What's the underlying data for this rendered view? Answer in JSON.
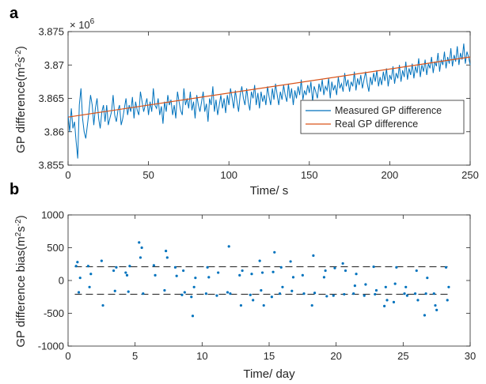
{
  "chart_data": [
    {
      "panel_label": "a",
      "type": "line",
      "xlabel": "Time/ s",
      "ylabel_main": "GP difference(m",
      "ylabel_sup1": "2",
      "ylabel_mid": "s",
      "ylabel_sup2": "-2",
      "ylabel_end": ")",
      "exponent_base": "× 10",
      "exponent_power": "6",
      "xlim": [
        0,
        250
      ],
      "ylim": [
        3.855,
        3.875
      ],
      "xticks": [
        0,
        50,
        100,
        150,
        200,
        250
      ],
      "xtick_labels": [
        "0",
        "50",
        "100",
        "150",
        "200",
        "250"
      ],
      "yticks": [
        3.855,
        3.86,
        3.865,
        3.87,
        3.875
      ],
      "ytick_labels": [
        "3.855",
        "3.86",
        "3.865",
        "3.87",
        "3.875"
      ],
      "legend_position": "lower-right",
      "series": [
        {
          "name": "Measured GP difference",
          "color": "#0072BD",
          "x": [
            0,
            1,
            2,
            3,
            4,
            5,
            6,
            7,
            8,
            9,
            10,
            11,
            12,
            13,
            14,
            15,
            16,
            17,
            18,
            19,
            20,
            21,
            22,
            23,
            24,
            25,
            26,
            27,
            28,
            29,
            30,
            31,
            32,
            33,
            34,
            35,
            36,
            37,
            38,
            39,
            40,
            41,
            42,
            43,
            44,
            45,
            46,
            47,
            48,
            49,
            50,
            51,
            52,
            53,
            54,
            55,
            56,
            57,
            58,
            59,
            60,
            61,
            62,
            63,
            64,
            65,
            66,
            67,
            68,
            69,
            70,
            71,
            72,
            73,
            74,
            75,
            76,
            77,
            78,
            79,
            80,
            81,
            82,
            83,
            84,
            85,
            86,
            87,
            88,
            89,
            90,
            91,
            92,
            93,
            94,
            95,
            96,
            97,
            98,
            99,
            100,
            101,
            102,
            103,
            104,
            105,
            106,
            107,
            108,
            109,
            110,
            111,
            112,
            113,
            114,
            115,
            116,
            117,
            118,
            119,
            120,
            121,
            122,
            123,
            124,
            125,
            126,
            127,
            128,
            129,
            130,
            131,
            132,
            133,
            134,
            135,
            136,
            137,
            138,
            139,
            140,
            141,
            142,
            143,
            144,
            145,
            146,
            147,
            148,
            149,
            150,
            151,
            152,
            153,
            154,
            155,
            156,
            157,
            158,
            159,
            160,
            161,
            162,
            163,
            164,
            165,
            166,
            167,
            168,
            169,
            170,
            171,
            172,
            173,
            174,
            175,
            176,
            177,
            178,
            179,
            180,
            181,
            182,
            183,
            184,
            185,
            186,
            187,
            188,
            189,
            190,
            191,
            192,
            193,
            194,
            195,
            196,
            197,
            198,
            199,
            200,
            201,
            202,
            203,
            204,
            205,
            206,
            207,
            208,
            209,
            210,
            211,
            212,
            213,
            214,
            215,
            216,
            217,
            218,
            219,
            220,
            221,
            222,
            223,
            224,
            225,
            226,
            227,
            228,
            229,
            230,
            231,
            232,
            233,
            234,
            235,
            236,
            237,
            238,
            239,
            240,
            241,
            242,
            243,
            244,
            245,
            246,
            247,
            248,
            249,
            250
          ],
          "y": [
            3.8625,
            3.86,
            3.8635,
            3.8605,
            3.8615,
            3.8585,
            3.856,
            3.864,
            3.8665,
            3.862,
            3.86,
            3.859,
            3.861,
            3.863,
            3.8655,
            3.864,
            3.861,
            3.8635,
            3.865,
            3.862,
            3.8605,
            3.863,
            3.864,
            3.8615,
            3.864,
            3.861,
            3.862,
            3.863,
            3.8655,
            3.8625,
            3.8615,
            3.8632,
            3.864,
            3.861,
            3.862,
            3.8635,
            3.865,
            3.8625,
            3.864,
            3.863,
            3.8652,
            3.862,
            3.8645,
            3.8632,
            3.8625,
            3.866,
            3.8645,
            3.863,
            3.864,
            3.865,
            3.8625,
            3.8645,
            3.863,
            3.8665,
            3.864,
            3.8635,
            3.865,
            3.8625,
            3.8638,
            3.8612,
            3.8645,
            3.863,
            3.8655,
            3.864,
            3.8648,
            3.8625,
            3.864,
            3.862,
            3.866,
            3.8645,
            3.8632,
            3.8625,
            3.8665,
            3.864,
            3.865,
            3.8635,
            3.866,
            3.8632,
            3.8645,
            3.862,
            3.8655,
            3.864,
            3.863,
            3.8645,
            3.866,
            3.863,
            3.8642,
            3.8615,
            3.865,
            3.864,
            3.8668,
            3.863,
            3.8648,
            3.8625,
            3.864,
            3.8655,
            3.8635,
            3.865,
            3.8628,
            3.8655,
            3.864,
            3.8665,
            3.865,
            3.8635,
            3.8662,
            3.8645,
            3.863,
            3.8655,
            3.8668,
            3.865,
            3.864,
            3.8665,
            3.8645,
            3.8632,
            3.866,
            3.865,
            3.867,
            3.864,
            3.8658,
            3.8635,
            3.866,
            3.8645,
            3.8655,
            3.864,
            3.8668,
            3.8652,
            3.864,
            3.8665,
            3.8648,
            3.8672,
            3.8655,
            3.864,
            3.866,
            3.8648,
            3.867,
            3.8655,
            3.8645,
            3.8672,
            3.865,
            3.8665,
            3.864,
            3.8662,
            3.865,
            3.8668,
            3.8655,
            3.8678,
            3.8648,
            3.8662,
            3.8655,
            3.867,
            3.8658,
            3.8675,
            3.8645,
            3.8668,
            3.866,
            3.865,
            3.8672,
            3.866,
            3.8678,
            3.8655,
            3.8668,
            3.8662,
            3.868,
            3.865,
            3.8675,
            3.8662,
            3.867,
            3.8655,
            3.8682,
            3.8665,
            3.8672,
            3.866,
            3.8688,
            3.8668,
            3.8678,
            3.866,
            3.8675,
            3.8668,
            3.869,
            3.8662,
            3.868,
            3.867,
            3.8685,
            3.8665,
            3.8678,
            3.869,
            3.8672,
            3.866,
            3.8682,
            3.867,
            3.8688,
            3.8675,
            3.8692,
            3.8668,
            3.8682,
            3.867,
            3.869,
            3.8676,
            3.8695,
            3.8668,
            3.8685,
            3.8678,
            3.8698,
            3.8672,
            3.8688,
            3.868,
            3.87,
            3.8675,
            3.8692,
            3.8682,
            3.8705,
            3.8678,
            3.8695,
            3.8685,
            3.8702,
            3.868,
            3.8698,
            3.8688,
            3.871,
            3.8682,
            3.87,
            3.869,
            3.8708,
            3.8685,
            3.8702,
            3.8695,
            3.8712,
            3.8688,
            3.8705,
            3.8698,
            3.8718,
            3.869,
            3.8708,
            3.87,
            3.872,
            3.8695,
            3.8712,
            3.8702,
            3.8725,
            3.8698,
            3.8715,
            3.8705,
            3.8728,
            3.87,
            3.8718,
            3.8708,
            3.8732,
            3.8702,
            3.872,
            3.8712,
            3.87
          ]
        },
        {
          "name": "Real GP difference",
          "color": "#D95319",
          "x": [
            0,
            250
          ],
          "y": [
            3.8622,
            3.8712
          ]
        }
      ]
    },
    {
      "panel_label": "b",
      "type": "scatter",
      "xlabel": "Time/ day",
      "ylabel_main": "GP difference bias(m",
      "ylabel_sup1": "2",
      "ylabel_mid": "s",
      "ylabel_sup2": "-2",
      "ylabel_end": ")",
      "xlim": [
        0,
        30
      ],
      "ylim": [
        -1000,
        1000
      ],
      "xticks": [
        0,
        5,
        10,
        15,
        20,
        25,
        30
      ],
      "xtick_labels": [
        "0",
        "5",
        "10",
        "15",
        "20",
        "25",
        "30"
      ],
      "yticks": [
        -1000,
        -500,
        0,
        500,
        1000
      ],
      "ytick_labels": [
        "-1000",
        "-500",
        "0",
        "500",
        "1000"
      ],
      "reference_lines": [
        210,
        -210
      ],
      "series": [
        {
          "color": "#0072BD",
          "x": [
            0.6,
            0.7,
            0.8,
            0.9,
            1.5,
            1.6,
            1.7,
            2.5,
            2.6,
            3.4,
            3.5,
            3.6,
            4.3,
            4.4,
            4.5,
            4.6,
            5.3,
            5.4,
            5.5,
            5.6,
            6.4,
            6.5,
            7.2,
            7.3,
            7.4,
            8.0,
            8.1,
            8.5,
            8.6,
            8.7,
            9.2,
            9.3,
            9.4,
            9.5,
            10.3,
            10.4,
            10.5,
            11.1,
            11.2,
            11.9,
            12.0,
            12.1,
            12.8,
            12.9,
            13.0,
            13.6,
            13.7,
            13.8,
            14.3,
            14.4,
            14.5,
            14.6,
            15.2,
            15.3,
            15.4,
            15.8,
            15.9,
            16.0,
            16.6,
            16.7,
            16.8,
            17.5,
            17.6,
            18.2,
            18.3,
            18.4,
            19.1,
            19.2,
            19.3,
            19.8,
            19.9,
            20.5,
            20.6,
            20.7,
            21.3,
            21.4,
            21.5,
            22.1,
            22.2,
            22.8,
            22.9,
            23.0,
            23.6,
            23.7,
            23.8,
            24.3,
            24.4,
            24.5,
            25.1,
            25.2,
            25.3,
            25.9,
            26.0,
            26.1,
            26.6,
            26.7,
            26.8,
            27.3,
            27.4,
            27.5,
            28.2,
            28.3,
            28.4
          ],
          "y": [
            220,
            280,
            -180,
            40,
            220,
            -100,
            100,
            300,
            -380,
            150,
            -160,
            200,
            120,
            80,
            -170,
            220,
            580,
            350,
            500,
            -200,
            230,
            80,
            -150,
            450,
            350,
            200,
            70,
            -220,
            150,
            -180,
            -250,
            -540,
            -100,
            40,
            -200,
            200,
            50,
            -230,
            120,
            -180,
            520,
            -200,
            80,
            -380,
            150,
            -220,
            100,
            -300,
            300,
            -150,
            120,
            -380,
            -250,
            130,
            430,
            -200,
            200,
            -100,
            290,
            -160,
            50,
            80,
            -200,
            -380,
            380,
            -190,
            50,
            150,
            -240,
            -230,
            190,
            260,
            -210,
            150,
            -200,
            -80,
            100,
            -230,
            -60,
            210,
            -210,
            -150,
            -390,
            -100,
            -300,
            -330,
            -50,
            200,
            -200,
            -100,
            -230,
            -200,
            150,
            -300,
            -530,
            -200,
            40,
            -200,
            -380,
            -450,
            200,
            -300,
            -100
          ]
        }
      ]
    }
  ]
}
